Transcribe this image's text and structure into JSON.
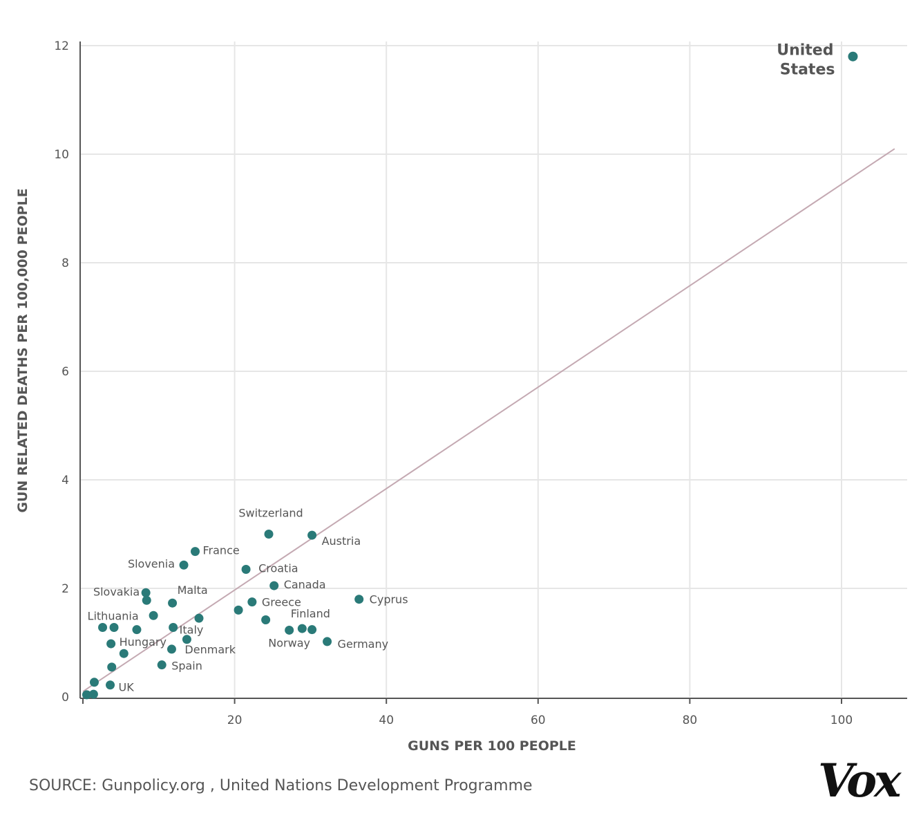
{
  "chart_data": {
    "type": "scatter",
    "title": "",
    "xlabel": "GUNS PER 100 PEOPLE",
    "ylabel": "GUN RELATED DEATHS PER 100,000 PEOPLE",
    "xlim": [
      0,
      110
    ],
    "ylim": [
      0,
      12.2
    ],
    "xticks": [
      20,
      40,
      60,
      80,
      100
    ],
    "yticks": [
      0,
      2,
      4,
      6,
      8,
      10,
      12
    ],
    "grid": true,
    "point_color": "#2a7a78",
    "trendline_color": "#c4a9b2",
    "trendline": {
      "x": [
        0,
        107
      ],
      "y": [
        0.1,
        10.1
      ]
    },
    "points": [
      {
        "x": 101.5,
        "y": 11.8,
        "label": "United States"
      },
      {
        "x": 24.5,
        "y": 3.0,
        "label": "Switzerland"
      },
      {
        "x": 30.2,
        "y": 2.98,
        "label": "Austria"
      },
      {
        "x": 14.8,
        "y": 2.68,
        "label": "France"
      },
      {
        "x": 13.3,
        "y": 2.43,
        "label": "Slovenia"
      },
      {
        "x": 21.5,
        "y": 2.35,
        "label": "Croatia"
      },
      {
        "x": 25.2,
        "y": 2.05,
        "label": "Canada"
      },
      {
        "x": 8.3,
        "y": 1.92,
        "label": "Slovakia"
      },
      {
        "x": 8.4,
        "y": 1.78,
        "label": ""
      },
      {
        "x": 11.8,
        "y": 1.73,
        "label": "Malta"
      },
      {
        "x": 36.4,
        "y": 1.8,
        "label": "Cyprus"
      },
      {
        "x": 22.3,
        "y": 1.75,
        "label": "Greece"
      },
      {
        "x": 20.5,
        "y": 1.6,
        "label": ""
      },
      {
        "x": 24.1,
        "y": 1.42,
        "label": ""
      },
      {
        "x": 9.3,
        "y": 1.5,
        "label": ""
      },
      {
        "x": 15.3,
        "y": 1.45,
        "label": ""
      },
      {
        "x": 2.6,
        "y": 1.28,
        "label": "Lithuania"
      },
      {
        "x": 4.1,
        "y": 1.28,
        "label": ""
      },
      {
        "x": 7.1,
        "y": 1.24,
        "label": ""
      },
      {
        "x": 11.9,
        "y": 1.28,
        "label": "Italy"
      },
      {
        "x": 28.9,
        "y": 1.26,
        "label": "Finland"
      },
      {
        "x": 30.2,
        "y": 1.24,
        "label": ""
      },
      {
        "x": 27.2,
        "y": 1.23,
        "label": "Norway"
      },
      {
        "x": 32.2,
        "y": 1.02,
        "label": "Germany"
      },
      {
        "x": 13.7,
        "y": 1.06,
        "label": "Denmark"
      },
      {
        "x": 3.7,
        "y": 0.98,
        "label": "Hungary"
      },
      {
        "x": 11.7,
        "y": 0.88,
        "label": ""
      },
      {
        "x": 5.4,
        "y": 0.8,
        "label": ""
      },
      {
        "x": 10.4,
        "y": 0.59,
        "label": "Spain"
      },
      {
        "x": 3.8,
        "y": 0.55,
        "label": ""
      },
      {
        "x": 1.5,
        "y": 0.27,
        "label": ""
      },
      {
        "x": 3.6,
        "y": 0.22,
        "label": "UK"
      },
      {
        "x": 0.5,
        "y": 0.04,
        "label": ""
      },
      {
        "x": 1.4,
        "y": 0.05,
        "label": ""
      }
    ]
  },
  "footer": {
    "source_text": "SOURCE: Gunpolicy.org , United Nations Development Programme",
    "logo_text": "Vox"
  }
}
